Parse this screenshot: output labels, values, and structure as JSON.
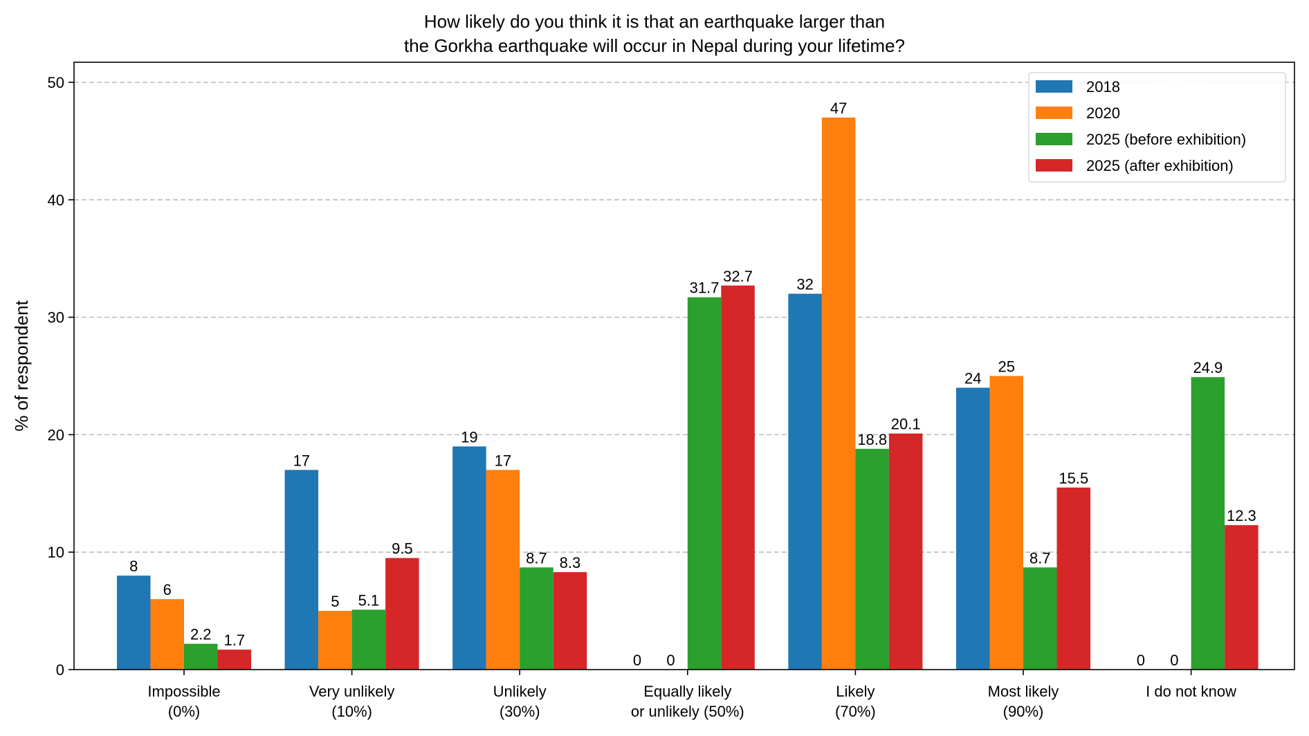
{
  "chart_data": {
    "type": "bar",
    "title": [
      "How likely do you think it is that an earthquake larger than",
      "the Gorkha earthquake will occur in Nepal during your lifetime?"
    ],
    "xlabel": "",
    "ylabel": "% of respondent",
    "ylim": [
      0,
      51.7
    ],
    "yticks": [
      0,
      10,
      20,
      30,
      40,
      50
    ],
    "grid": "y dashed",
    "legend_placement": "top-right",
    "categories": [
      [
        "Impossible",
        "(0%)"
      ],
      [
        "Very unlikely",
        "(10%)"
      ],
      [
        "Unlikely",
        "(30%)"
      ],
      [
        "Equally likely",
        "or unlikely (50%)"
      ],
      [
        "Likely",
        "(70%)"
      ],
      [
        "Most likely",
        "(90%)"
      ],
      [
        "I do not know",
        ""
      ]
    ],
    "series": [
      {
        "name": "2018",
        "color": "#1f77b4",
        "values": [
          8,
          17,
          19,
          0,
          32,
          24,
          0
        ],
        "labels": [
          "8",
          "17",
          "19",
          "0",
          "32",
          "24",
          "0"
        ]
      },
      {
        "name": "2020",
        "color": "#ff7f0e",
        "values": [
          6,
          5,
          17,
          0,
          47,
          25,
          0
        ],
        "labels": [
          "6",
          "5",
          "17",
          "0",
          "47",
          "25",
          "0"
        ]
      },
      {
        "name": "2025 (before exhibition)",
        "color": "#2ca02c",
        "values": [
          2.2,
          5.1,
          8.7,
          31.7,
          18.8,
          8.7,
          24.9
        ],
        "labels": [
          "2.2",
          "5.1",
          "8.7",
          "31.7",
          "18.8",
          "8.7",
          "24.9"
        ]
      },
      {
        "name": "2025 (after exhibition)",
        "color": "#d62728",
        "values": [
          1.7,
          9.5,
          8.3,
          32.7,
          20.1,
          15.5,
          12.3
        ],
        "labels": [
          "1.7",
          "9.5",
          "8.3",
          "32.7",
          "20.1",
          "15.5",
          "12.3"
        ]
      }
    ]
  }
}
